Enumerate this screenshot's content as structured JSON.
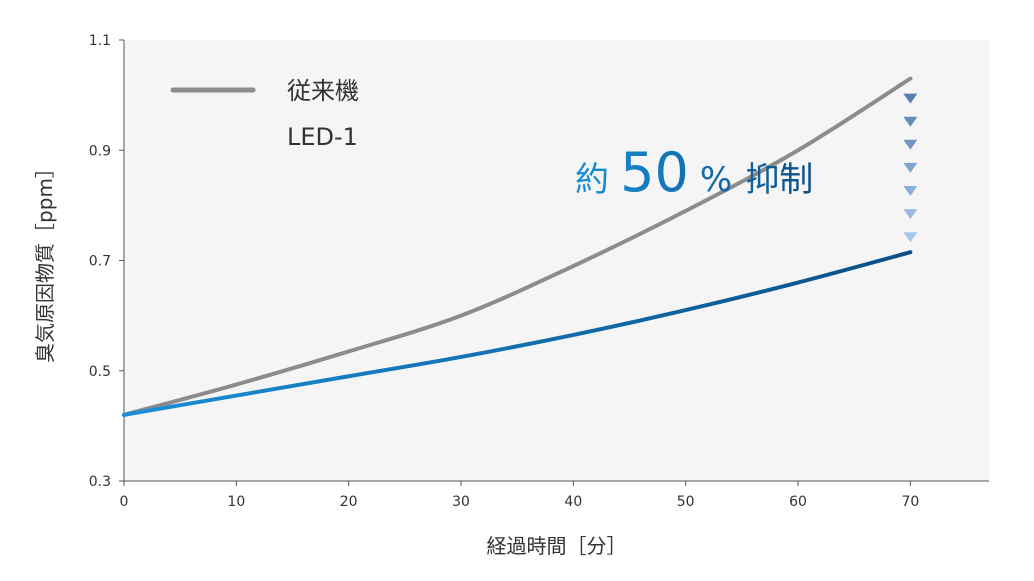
{
  "chart_data": {
    "type": "line",
    "x": [
      0,
      10,
      20,
      30,
      40,
      50,
      60,
      70
    ],
    "xlim": [
      0,
      77
    ],
    "ylim": [
      0.3,
      1.1
    ],
    "x_ticks": [
      "0",
      "10",
      "20",
      "30",
      "40",
      "50",
      "60",
      "70"
    ],
    "y_ticks": [
      "0.3",
      "0.5",
      "0.7",
      "0.9",
      "1.1"
    ],
    "xlabel": "経過時間［分］",
    "ylabel": "臭気原因物質［ppm］",
    "grid": false,
    "legend_position": "top-left",
    "series": [
      {
        "name": "従来機",
        "color": "#8c8c8c",
        "values": [
          0.42,
          0.475,
          0.535,
          0.6,
          0.69,
          0.79,
          0.9,
          1.03
        ]
      },
      {
        "name": "LED-1",
        "color_start": "#1a8fd8",
        "color_end": "#0b4f86",
        "values": [
          0.42,
          0.455,
          0.49,
          0.525,
          0.565,
          0.61,
          0.66,
          0.715
        ]
      }
    ],
    "annotation": {
      "prefix": "約",
      "value": "50",
      "percent": "%",
      "suffix": "抑制",
      "color_start": "#1a8fd8",
      "color_end": "#0b4f86",
      "arrow_x": 70,
      "arrow_count": 7
    },
    "plot_background": "#f5f5f5"
  }
}
